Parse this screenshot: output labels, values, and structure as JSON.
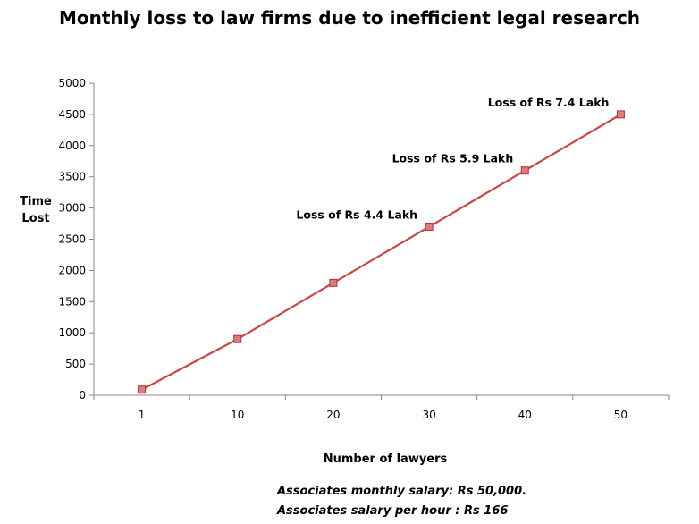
{
  "chart_data": {
    "type": "line",
    "title": "Monthly loss to law firms due to inefficient legal research",
    "xlabel": "Number of lawyers",
    "ylabel_lines": [
      "Time",
      "Lost"
    ],
    "categories": [
      "1",
      "10",
      "20",
      "30",
      "40",
      "50"
    ],
    "series": [
      {
        "values": [
          90,
          900,
          1800,
          2700,
          3600,
          4500
        ]
      }
    ],
    "ylim": [
      0,
      5000
    ],
    "yticks": [
      0,
      500,
      1000,
      1500,
      2000,
      2500,
      3000,
      3500,
      4000,
      4500,
      5000
    ],
    "annotations": [
      {
        "category": "30",
        "text": "Loss of Rs 4.4 Lakh"
      },
      {
        "category": "40",
        "text": "Loss of Rs 5.9 Lakh"
      },
      {
        "category": "50",
        "text": "Loss of Rs 7.4 Lakh"
      }
    ],
    "notes": [
      "Associates monthly salary: Rs 50,000.",
      "Associates salary per hour : Rs 166"
    ],
    "series_color": "#cc4444",
    "grid": false,
    "legend": "none"
  }
}
